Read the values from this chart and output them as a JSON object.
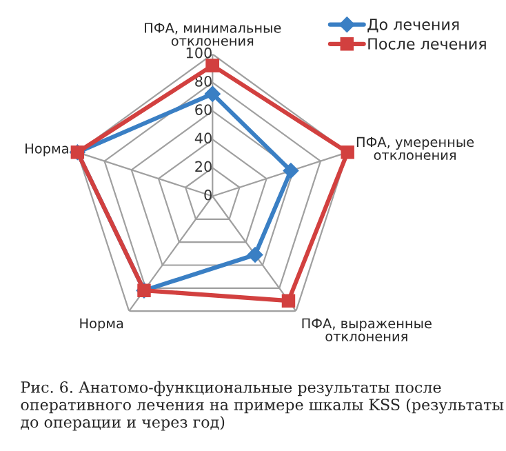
{
  "chart_data": {
    "type": "radar",
    "categories": [
      "ПФА, минимальные\nотклонения",
      "ПФА, умеренные\nотклонения",
      "ПФА, выраженные\nотклонения",
      "Норма",
      "Норма"
    ],
    "series": [
      {
        "name": "До лечения",
        "color": "#3a7fc4",
        "values": [
          72,
          58,
          51,
          82,
          100
        ],
        "marker": "diamond"
      },
      {
        "name": "После лечения",
        "color": "#d2403f",
        "values": [
          92,
          100,
          91,
          82,
          100
        ],
        "marker": "square"
      }
    ],
    "ylim": [
      0,
      100
    ],
    "yticks": [
      0,
      20,
      40,
      60,
      80,
      100
    ],
    "legend": "top right",
    "grid": true,
    "annotations": [
      "Рис. 6. Анатомо-функциональные результаты после оперативного лечения на примере шкалы KSS (результаты до операции и через год)"
    ]
  }
}
